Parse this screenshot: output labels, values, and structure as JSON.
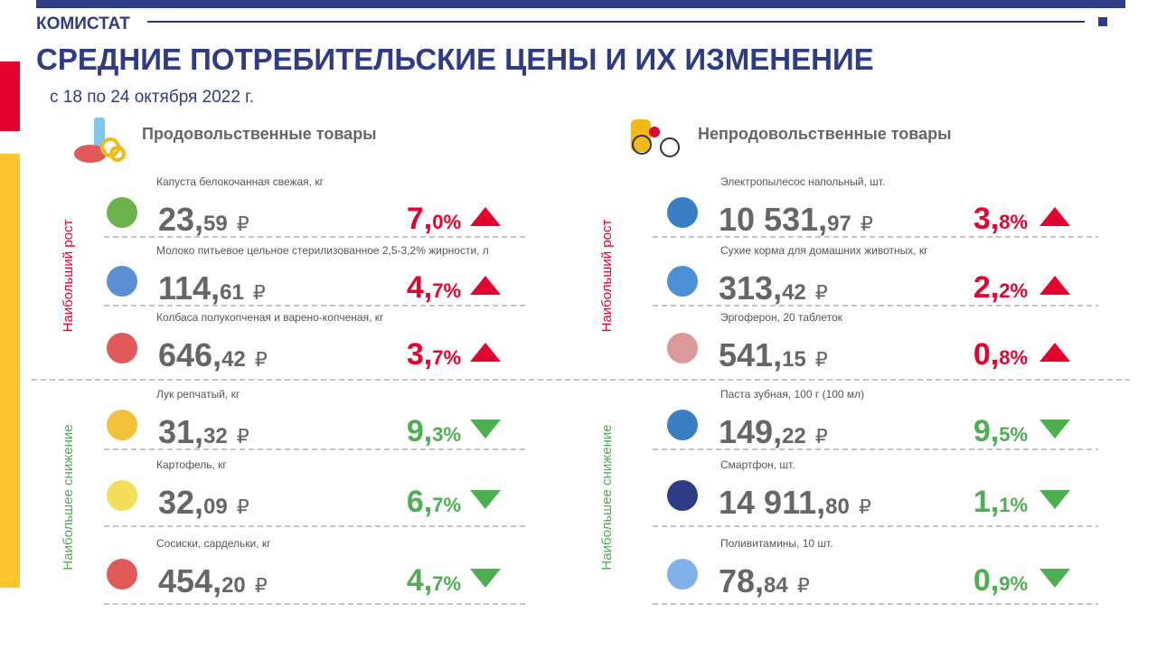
{
  "header": {
    "brand": "КОМИСТАТ",
    "title": "СРЕДНИЕ ПОТРЕБИТЕЛЬСКИЕ ЦЕНЫ И ИХ ИЗМЕНЕНИЕ",
    "period": "с 18 по 24 октября 2022 г.",
    "currency": "₽"
  },
  "sections": [
    {
      "title": "Продовольственные товары",
      "groups": [
        {
          "label": "Наибольший рост",
          "direction": "up",
          "items": [
            {
              "name": "Капуста белокочанная  свежая, кг",
              "price_main": "23,",
              "price_fraction": "59",
              "change_main": "7,",
              "change_fraction": "0%"
            },
            {
              "name": "Молоко питьевое цельное стерилизованное  2,5-3,2% жирности, л",
              "price_main": "114,",
              "price_fraction": "61",
              "change_main": "4,",
              "change_fraction": "7%"
            },
            {
              "name": "Колбаса полукопченая и варено-копченая,  кг",
              "price_main": "646,",
              "price_fraction": "42",
              "change_main": "3,",
              "change_fraction": "7%"
            }
          ]
        },
        {
          "label": "Наибольшее снижение",
          "direction": "down",
          "items": [
            {
              "name": "Лук репчатый,  кг",
              "price_main": "31,",
              "price_fraction": "32",
              "change_main": "9,",
              "change_fraction": "3%"
            },
            {
              "name": "Картофель,  кг",
              "price_main": "32,",
              "price_fraction": "09",
              "change_main": "6,",
              "change_fraction": "7%"
            },
            {
              "name": "Сосиски, сардельки, кг",
              "price_main": "454,",
              "price_fraction": "20",
              "change_main": "4,",
              "change_fraction": "7%"
            }
          ]
        }
      ]
    },
    {
      "title": "Непродовольственные товары",
      "groups": [
        {
          "label": "Наибольший рост",
          "direction": "up",
          "items": [
            {
              "name": "Электропылесос  напольный,  шт.",
              "price_main": "10 531,",
              "price_fraction": "97",
              "change_main": "3,",
              "change_fraction": "8%"
            },
            {
              "name": "Сухие корма для домашних животных,  кг",
              "price_main": "313,",
              "price_fraction": "42",
              "change_main": "2,",
              "change_fraction": "2%"
            },
            {
              "name": "Эргоферон,  20 таблеток",
              "price_main": "541,",
              "price_fraction": "15",
              "change_main": "0,",
              "change_fraction": "8%"
            }
          ]
        },
        {
          "label": "Наибольшее снижение",
          "direction": "down",
          "items": [
            {
              "name": "Паста зубная, 100 г (100 мл)",
              "price_main": "149,",
              "price_fraction": "22",
              "change_main": "9,",
              "change_fraction": "5%"
            },
            {
              "name": "Смартфон,  шт.",
              "price_main": "14 911,",
              "price_fraction": "80",
              "change_main": "1,",
              "change_fraction": "1%"
            },
            {
              "name": "Поливитамины,  10 шт.",
              "price_main": "78,",
              "price_fraction": "84",
              "change_main": "0,",
              "change_fraction": "9%"
            }
          ]
        }
      ]
    }
  ]
}
